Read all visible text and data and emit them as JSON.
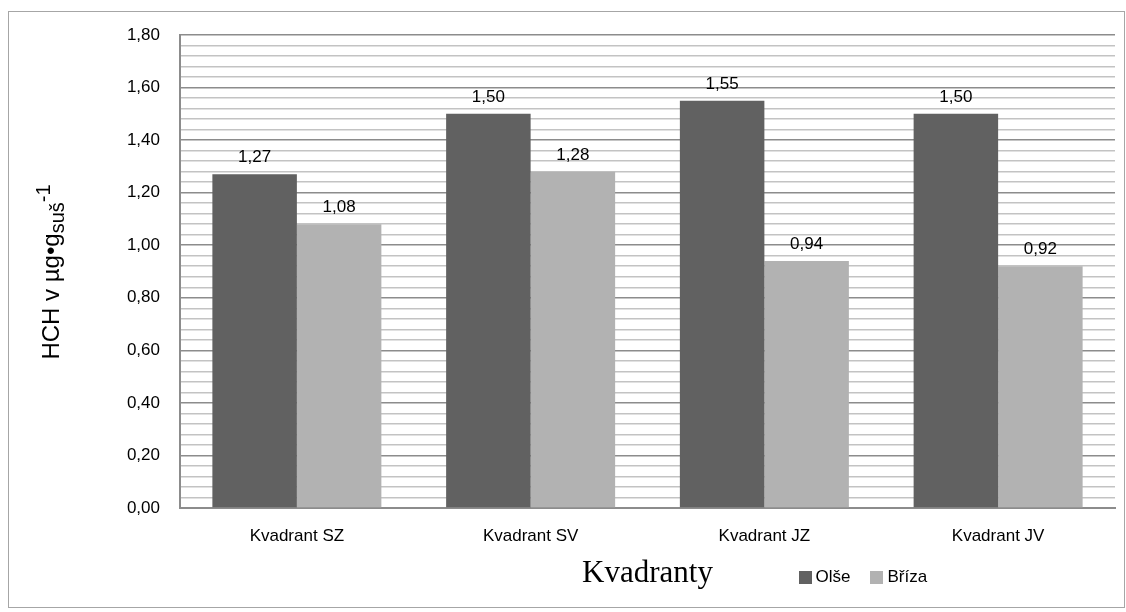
{
  "chart_data": {
    "type": "bar",
    "xlabel": "Kvadranty",
    "ylabel": "HCH v µg•g$_{suš}$$^{-1}$",
    "categories": [
      "Kvadrant SZ",
      "Kvadrant SV",
      "Kvadrant JZ",
      "Kvadrant JV"
    ],
    "series": [
      {
        "name": "Olše",
        "color": "#616161",
        "values": [
          1.27,
          1.5,
          1.55,
          1.5
        ],
        "value_labels": [
          "1,27",
          "1,50",
          "1,55",
          "1,50"
        ]
      },
      {
        "name": "Bříza",
        "color": "#b2b2b2",
        "values": [
          1.08,
          1.28,
          0.94,
          0.92
        ],
        "value_labels": [
          "1,08",
          "1,28",
          "0,94",
          "0,92"
        ]
      }
    ],
    "ylim": [
      0,
      1.8
    ],
    "yticks": [
      {
        "value": 0,
        "label": "0,00"
      },
      {
        "value": 0.04,
        "label": null
      },
      {
        "value": 0.08,
        "label": null
      },
      {
        "value": 0.12,
        "label": null
      },
      {
        "value": 0.16,
        "label": null
      },
      {
        "value": 0.2,
        "label": "0,20"
      },
      {
        "value": 0.24,
        "label": null
      },
      {
        "value": 0.28,
        "label": null
      },
      {
        "value": 0.32,
        "label": null
      },
      {
        "value": 0.36,
        "label": null
      },
      {
        "value": 0.4,
        "label": "0,40"
      },
      {
        "value": 0.44,
        "label": null
      },
      {
        "value": 0.48,
        "label": null
      },
      {
        "value": 0.52,
        "label": null
      },
      {
        "value": 0.56,
        "label": null
      },
      {
        "value": 0.6,
        "label": "0,60"
      },
      {
        "value": 0.64,
        "label": null
      },
      {
        "value": 0.68,
        "label": null
      },
      {
        "value": 0.72,
        "label": null
      },
      {
        "value": 0.76,
        "label": null
      },
      {
        "value": 0.8,
        "label": "0,80"
      },
      {
        "value": 0.84,
        "label": null
      },
      {
        "value": 0.88,
        "label": null
      },
      {
        "value": 0.92,
        "label": null
      },
      {
        "value": 0.96,
        "label": null
      },
      {
        "value": 1,
        "label": "1,00"
      },
      {
        "value": 1.04,
        "label": null
      },
      {
        "value": 1.08,
        "label": null
      },
      {
        "value": 1.12,
        "label": null
      },
      {
        "value": 1.16,
        "label": null
      },
      {
        "value": 1.2,
        "label": "1,20"
      },
      {
        "value": 1.24,
        "label": null
      },
      {
        "value": 1.28,
        "label": null
      },
      {
        "value": 1.32,
        "label": null
      },
      {
        "value": 1.36,
        "label": null
      },
      {
        "value": 1.4,
        "label": "1,40"
      },
      {
        "value": 1.44,
        "label": null
      },
      {
        "value": 1.48,
        "label": null
      },
      {
        "value": 1.52,
        "label": null
      },
      {
        "value": 1.56,
        "label": null
      },
      {
        "value": 1.6,
        "label": "1,60"
      },
      {
        "value": 1.64,
        "label": null
      },
      {
        "value": 1.68,
        "label": null
      },
      {
        "value": 1.72,
        "label": null
      },
      {
        "value": 1.76,
        "label": null
      },
      {
        "value": 1.8,
        "label": "1,80"
      }
    ],
    "grid": "y",
    "legend": "bottom"
  }
}
